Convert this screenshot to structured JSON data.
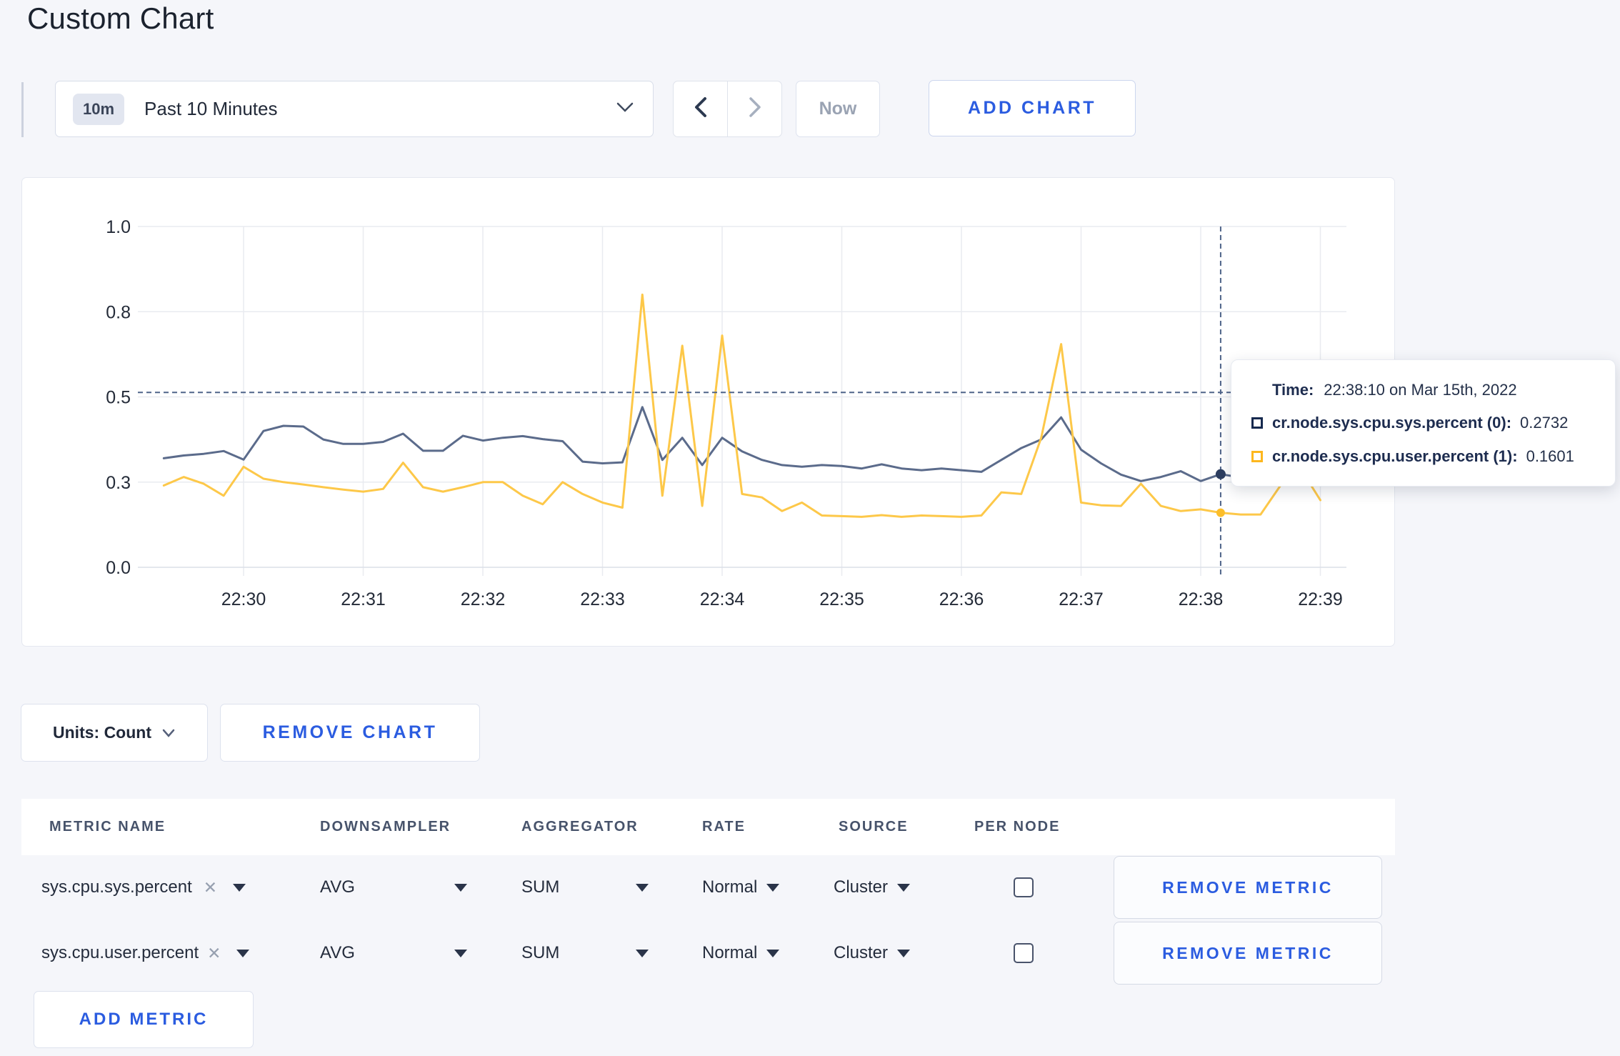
{
  "page": {
    "title": "Custom Chart"
  },
  "toolbar": {
    "time_badge": "10m",
    "time_label": "Past 10 Minutes",
    "now_label": "Now",
    "add_chart_label": "ADD CHART"
  },
  "icons": {
    "remove_x": "✕"
  },
  "chart_data": {
    "type": "line",
    "title": "",
    "xlabel": "",
    "ylabel": "",
    "ylim": [
      0,
      1
    ],
    "grid": true,
    "legend_position": "tooltip",
    "x_ticks": [
      "22:30",
      "22:31",
      "22:32",
      "22:33",
      "22:34",
      "22:35",
      "22:36",
      "22:37",
      "22:38",
      "22:39"
    ],
    "y_ticks": [
      {
        "label": "0.0",
        "value": 0
      },
      {
        "label": "0.3",
        "value": 0.25
      },
      {
        "label": "0.5",
        "value": 0.5
      },
      {
        "label": "0.8",
        "value": 0.75
      },
      {
        "label": "1.0",
        "value": 1.0
      }
    ],
    "x_start_minute": 29.3333,
    "x_step_minute": 0.16667,
    "series": [
      {
        "name": "cr.node.sys.cpu.sys.percent",
        "color": "#5b6b8b",
        "values": [
          0.32,
          0.328,
          0.333,
          0.341,
          0.316,
          0.4,
          0.415,
          0.413,
          0.375,
          0.362,
          0.362,
          0.368,
          0.392,
          0.342,
          0.342,
          0.386,
          0.372,
          0.38,
          0.385,
          0.376,
          0.37,
          0.31,
          0.305,
          0.308,
          0.47,
          0.315,
          0.38,
          0.3,
          0.38,
          0.34,
          0.315,
          0.3,
          0.295,
          0.3,
          0.297,
          0.29,
          0.302,
          0.29,
          0.285,
          0.29,
          0.285,
          0.28,
          0.315,
          0.35,
          0.375,
          0.44,
          0.345,
          0.305,
          0.272,
          0.253,
          0.265,
          0.282,
          0.253,
          0.2732,
          0.264,
          0.272,
          0.28,
          0.287,
          0.292
        ]
      },
      {
        "name": "cr.node.sys.cpu.user.percent",
        "color": "#fdc849",
        "values": [
          0.24,
          0.265,
          0.245,
          0.21,
          0.295,
          0.26,
          0.25,
          0.243,
          0.235,
          0.228,
          0.222,
          0.23,
          0.307,
          0.235,
          0.222,
          0.235,
          0.25,
          0.25,
          0.21,
          0.185,
          0.25,
          0.215,
          0.19,
          0.175,
          0.8,
          0.21,
          0.65,
          0.18,
          0.68,
          0.215,
          0.205,
          0.165,
          0.19,
          0.152,
          0.15,
          0.148,
          0.153,
          0.148,
          0.152,
          0.15,
          0.148,
          0.152,
          0.22,
          0.215,
          0.38,
          0.655,
          0.19,
          0.182,
          0.18,
          0.245,
          0.18,
          0.165,
          0.17,
          0.1601,
          0.155,
          0.155,
          0.24,
          0.29,
          0.197
        ]
      }
    ],
    "hover": {
      "time_minute": 38.1667,
      "guide_value": 0.513,
      "points": [
        {
          "value": 0.2732,
          "color": "#2d3e60",
          "r": 7
        },
        {
          "value": 0.1601,
          "color": "#fcbe2a",
          "r": 6
        }
      ]
    }
  },
  "tooltip": {
    "time_label": "Time:",
    "time_value": "22:38:10 on Mar 15th, 2022",
    "rows": [
      {
        "name": "cr.node.sys.cpu.sys.percent (0):",
        "value": "0.2732",
        "swatch": "#16294e"
      },
      {
        "name": "cr.node.sys.cpu.user.percent (1):",
        "value": "0.1601",
        "swatch": "#fdb71e"
      }
    ]
  },
  "chart_controls": {
    "units_label": "Units: Count",
    "remove_chart_label": "REMOVE CHART"
  },
  "metrics_table": {
    "headers": [
      "METRIC NAME",
      "DOWNSAMPLER",
      "AGGREGATOR",
      "RATE",
      "SOURCE",
      "PER NODE"
    ],
    "rows": [
      {
        "metric": "sys.cpu.sys.percent",
        "downsampler": "AVG",
        "aggregator": "SUM",
        "rate": "Normal",
        "source": "Cluster",
        "per_node": false,
        "remove_label": "REMOVE METRIC"
      },
      {
        "metric": "sys.cpu.user.percent",
        "downsampler": "AVG",
        "aggregator": "SUM",
        "rate": "Normal",
        "source": "Cluster",
        "per_node": false,
        "remove_label": "REMOVE METRIC"
      }
    ],
    "add_metric_label": "ADD METRIC"
  }
}
